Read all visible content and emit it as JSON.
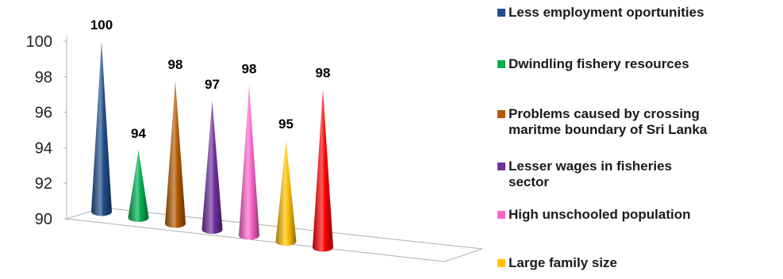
{
  "chart_data": {
    "type": "bar",
    "bar_shape": "cone",
    "categories": [
      "Less employment oportunities",
      "Dwindling fishery resources",
      "Problems caused by crossing maritme boundary of Sri Lanka",
      "Lesser  wages in fisheries sector",
      "High  unschooled population",
      "Large family size",
      ""
    ],
    "values": [
      100,
      94,
      98,
      97,
      98,
      95,
      98
    ],
    "data_labels": [
      "100",
      "94",
      "98",
      "97",
      "98",
      "95",
      "98"
    ],
    "colors": [
      "#1f4e8c",
      "#00b050",
      "#b35a00",
      "#7030a0",
      "#ff66cc",
      "#ffc000",
      "#ff0000"
    ],
    "yticks": [
      "90",
      "92",
      "94",
      "96",
      "98",
      "100"
    ],
    "ylim": [
      90,
      100
    ],
    "grid": false,
    "legend": "right",
    "legend_entries": [
      "Less employment oportunities",
      "Dwindling fishery resources",
      "Problems caused by crossing\nmaritme boundary of Sri Lanka",
      "Lesser  wages in fisheries\nsector",
      "High  unschooled population",
      "Large family size"
    ]
  }
}
